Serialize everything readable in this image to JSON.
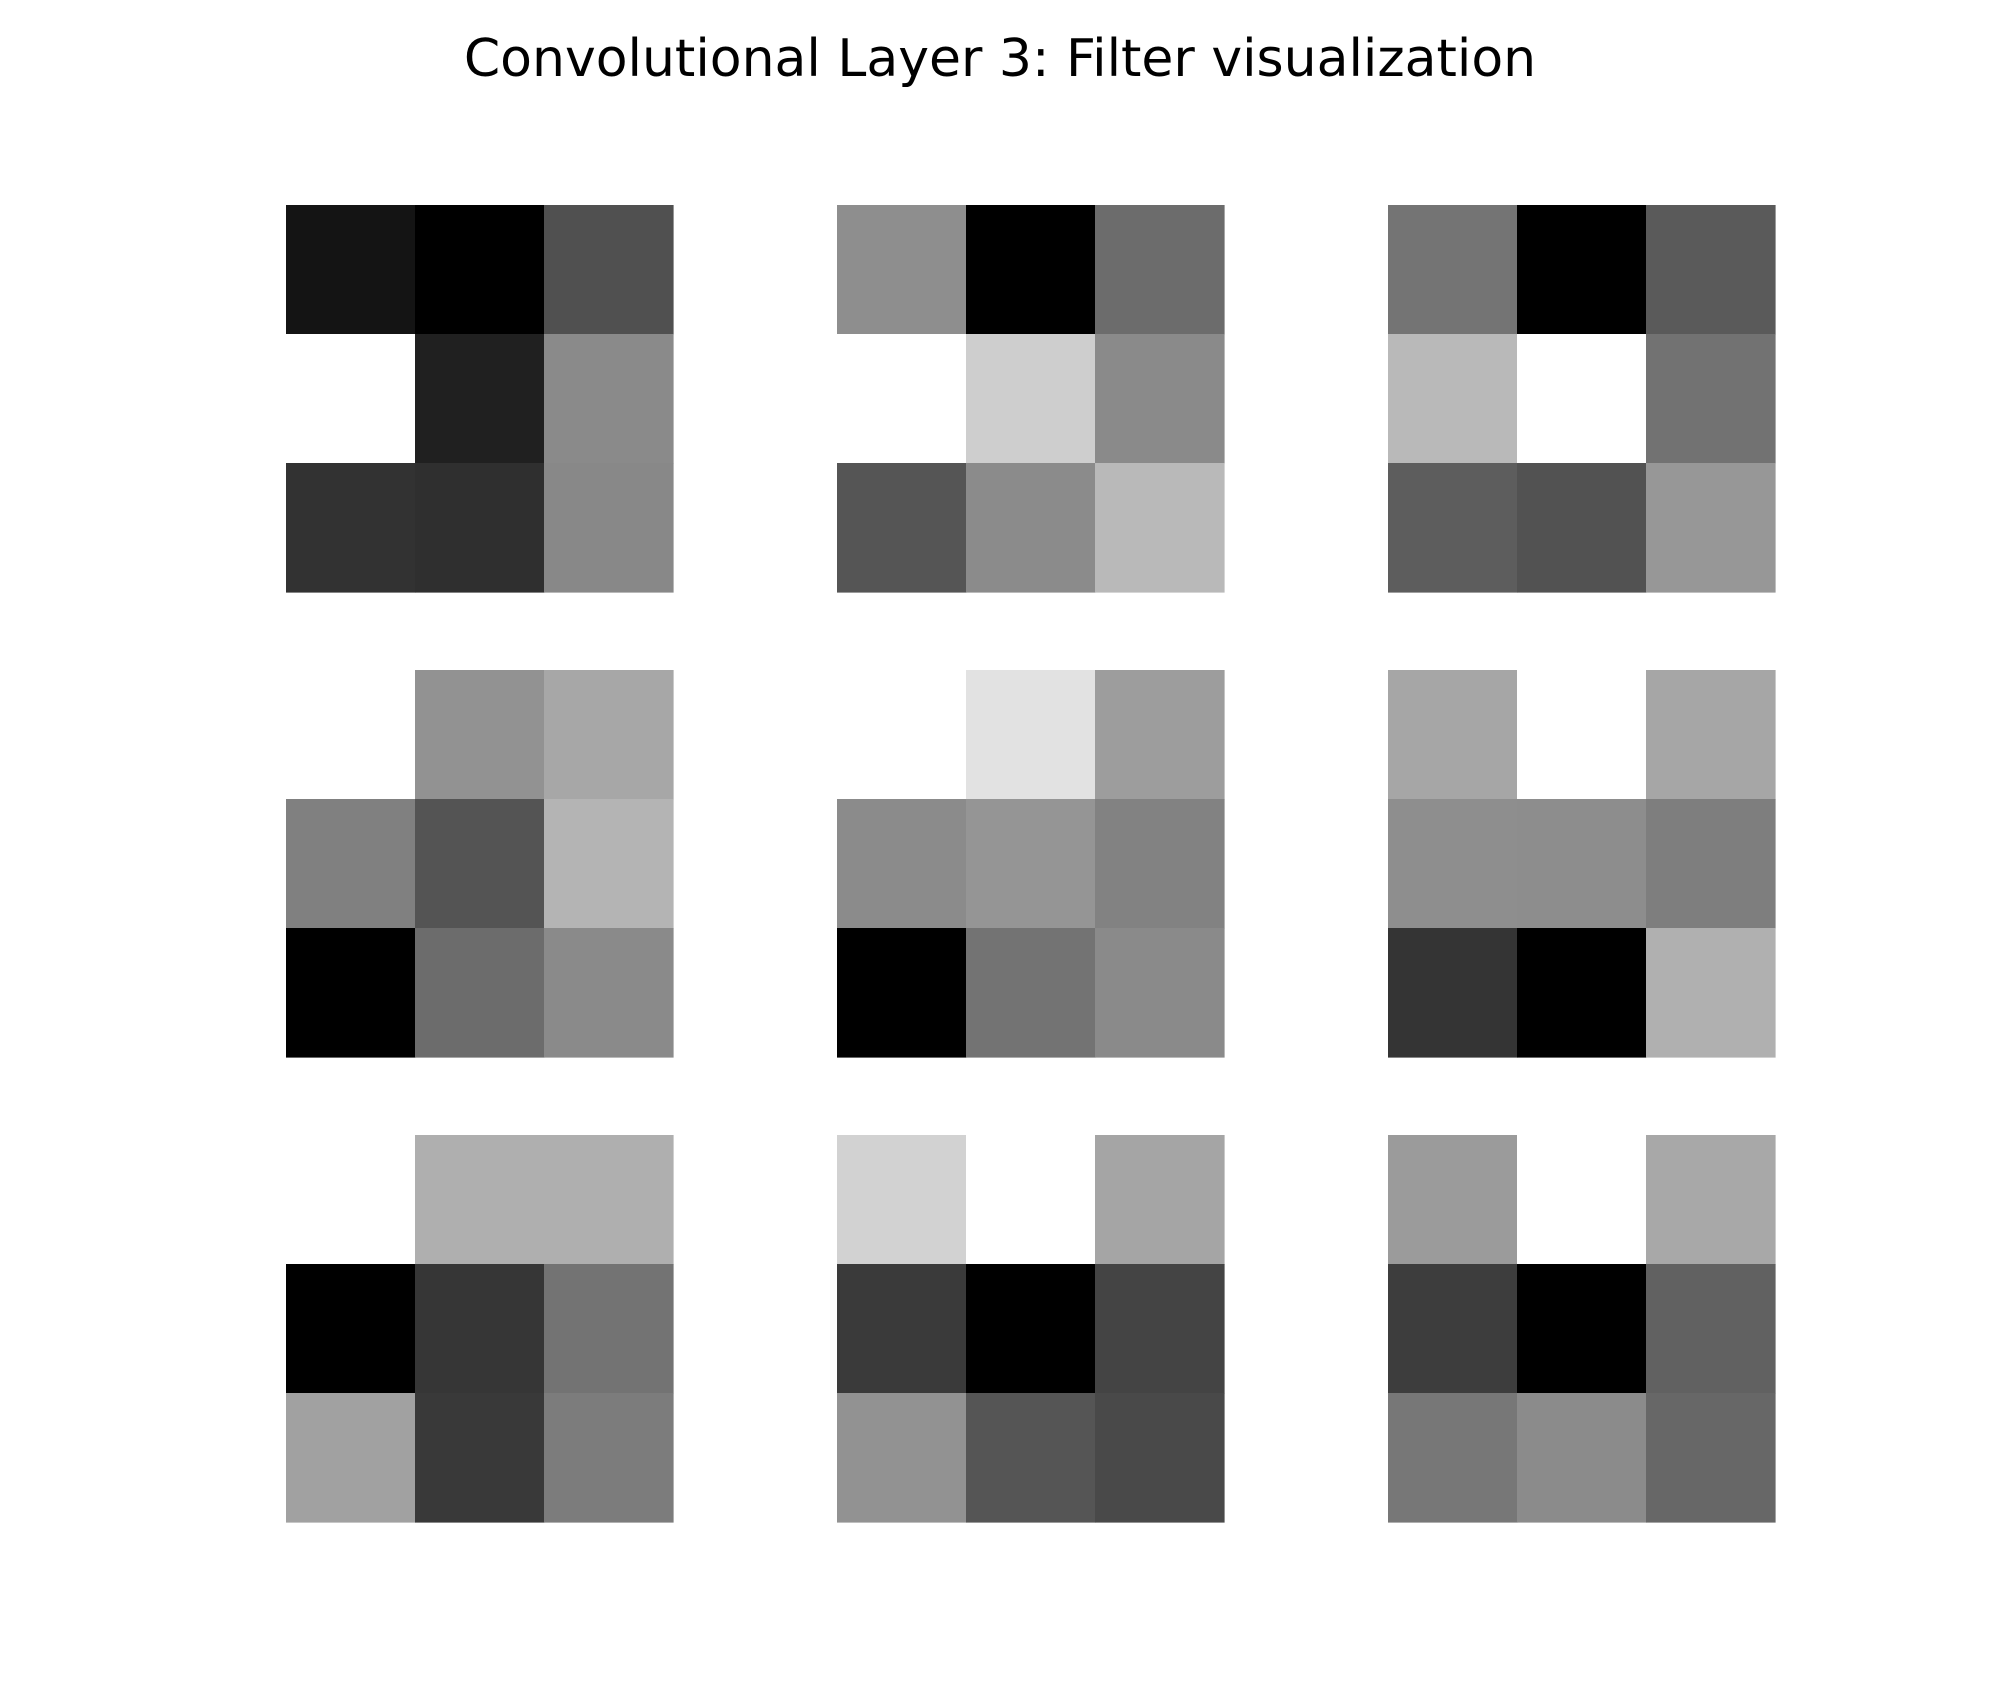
{
  "chart_data": {
    "type": "heatmap",
    "title": "Convolutional Layer 3: Filter visualization",
    "colormap": "gray",
    "grid": false,
    "axes_visible": false,
    "layout_rows": 3,
    "layout_cols": 3,
    "filters": [
      {
        "values": [
          [
            20,
            0,
            80
          ],
          [
            255,
            32,
            138
          ],
          [
            50,
            47,
            136
          ]
        ]
      },
      {
        "values": [
          [
            142,
            0,
            108
          ],
          [
            255,
            206,
            138
          ],
          [
            85,
            139,
            185
          ]
        ]
      },
      {
        "values": [
          [
            116,
            0,
            90
          ],
          [
            185,
            255,
            114
          ],
          [
            93,
            82,
            151
          ]
        ]
      },
      {
        "values": [
          [
            255,
            146,
            167
          ],
          [
            128,
            84,
            180
          ],
          [
            0,
            108,
            138
          ]
        ]
      },
      {
        "values": [
          [
            255,
            226,
            157
          ],
          [
            139,
            149,
            130
          ],
          [
            0,
            115,
            138
          ]
        ]
      },
      {
        "values": [
          [
            166,
            255,
            166
          ],
          [
            142,
            141,
            126
          ],
          [
            52,
            0,
            176
          ]
        ]
      },
      {
        "values": [
          [
            255,
            175,
            175
          ],
          [
            0,
            54,
            115
          ],
          [
            161,
            57,
            124
          ]
        ]
      },
      {
        "values": [
          [
            210,
            255,
            165
          ],
          [
            58,
            0,
            68
          ],
          [
            146,
            85,
            73
          ]
        ]
      },
      {
        "values": [
          [
            155,
            255,
            168
          ],
          [
            61,
            0,
            97
          ],
          [
            119,
            139,
            103
          ]
        ]
      }
    ]
  }
}
